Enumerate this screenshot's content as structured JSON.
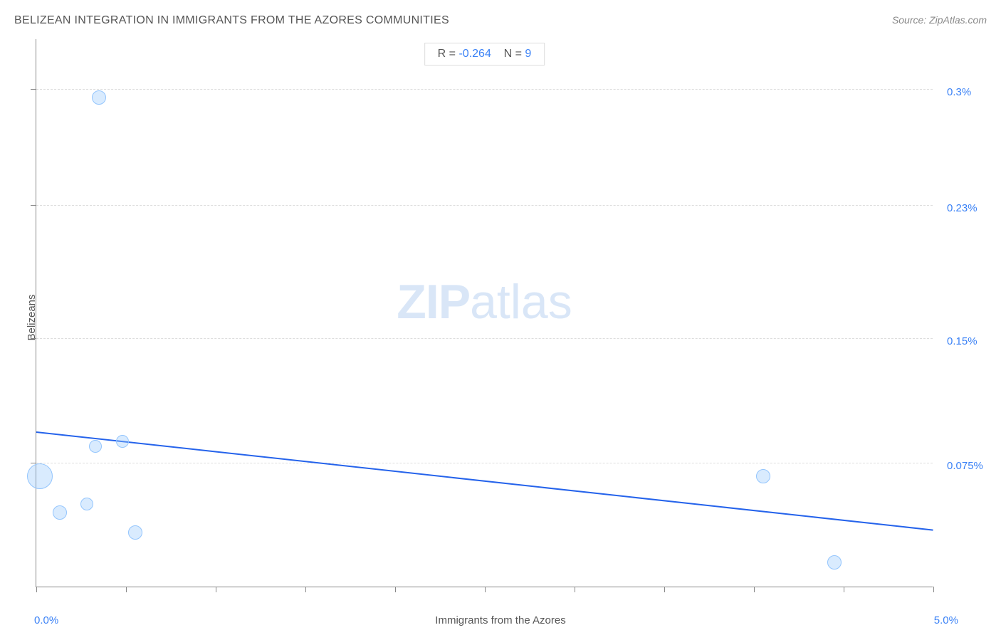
{
  "header": {
    "title": "BELIZEAN INTEGRATION IN IMMIGRANTS FROM THE AZORES COMMUNITIES",
    "source": "Source: ZipAtlas.com"
  },
  "watermark": {
    "part1": "ZIP",
    "part2": "atlas"
  },
  "stats": {
    "r_label": "R =",
    "r_value": "-0.264",
    "n_label": "N =",
    "n_value": "9"
  },
  "chart": {
    "type": "scatter",
    "xlabel": "Immigrants from the Azores",
    "ylabel": "Belizeans",
    "xlim": [
      0.0,
      5.0
    ],
    "ylim": [
      0.0,
      0.33
    ],
    "x_min_label": "0.0%",
    "x_max_label": "5.0%",
    "y_ticks": [
      {
        "value": 0.075,
        "label": "0.075%"
      },
      {
        "value": 0.15,
        "label": "0.15%"
      },
      {
        "value": 0.23,
        "label": "0.23%"
      },
      {
        "value": 0.3,
        "label": "0.3%"
      }
    ],
    "x_tick_count": 11,
    "points": [
      {
        "x": 0.35,
        "y": 0.295,
        "r": 10
      },
      {
        "x": 0.02,
        "y": 0.067,
        "r": 18
      },
      {
        "x": 0.33,
        "y": 0.085,
        "r": 9
      },
      {
        "x": 0.48,
        "y": 0.088,
        "r": 9
      },
      {
        "x": 0.13,
        "y": 0.045,
        "r": 10
      },
      {
        "x": 0.28,
        "y": 0.05,
        "r": 9
      },
      {
        "x": 0.55,
        "y": 0.033,
        "r": 10
      },
      {
        "x": 4.05,
        "y": 0.067,
        "r": 10
      },
      {
        "x": 4.45,
        "y": 0.015,
        "r": 10
      }
    ],
    "regression": {
      "y_at_xmin": 0.094,
      "y_at_xmax": 0.035
    },
    "colors": {
      "point_fill": "rgba(147,197,253,0.35)",
      "point_stroke": "#93c5fd",
      "line": "#2563eb",
      "tick_label": "#3b82f6",
      "grid": "#dddddd",
      "axis": "#888888",
      "text": "#555555"
    }
  }
}
